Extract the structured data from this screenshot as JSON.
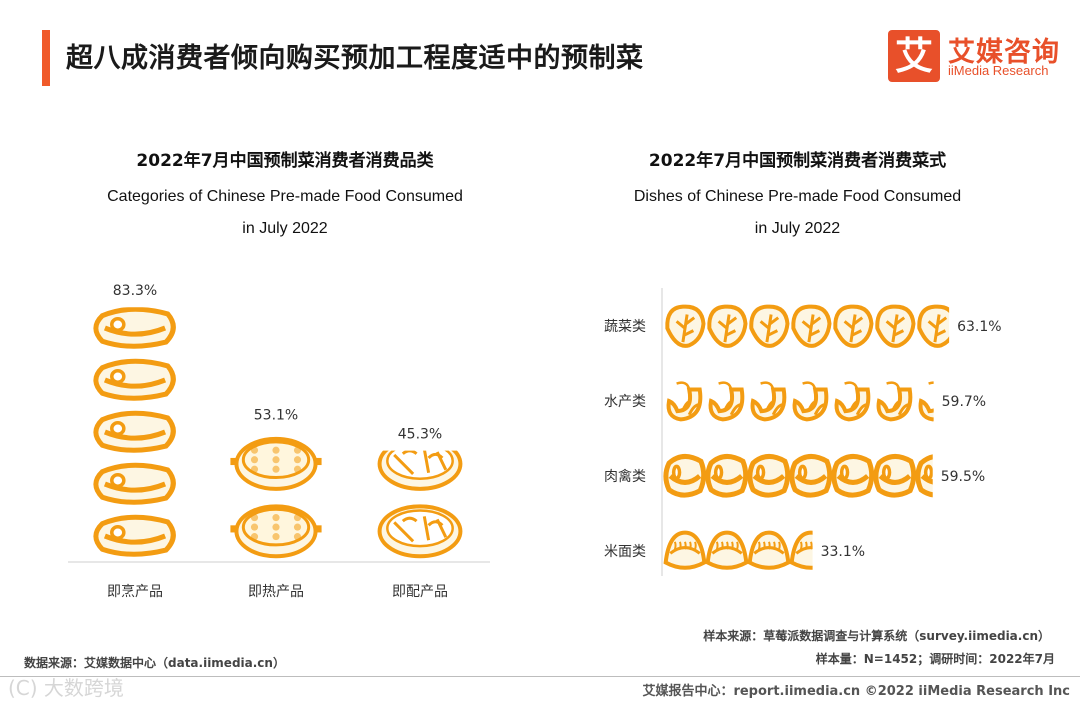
{
  "page": {
    "title": "超八成消费者倾向购买预加工程度适中的预制菜"
  },
  "logo": {
    "glyph": "艾",
    "cn": "艾媒咨询",
    "en": "iiMedia Research"
  },
  "charts_text": {
    "left_title_cn": "2022年7月中国预制菜消费者消费品类",
    "left_title_en_1": "Categories of Chinese Pre-made Food Consumed",
    "left_title_en_2": "in July 2022",
    "right_title_cn": "2022年7月中国预制菜消费者消费菜式",
    "right_title_en_1": "Dishes of Chinese Pre-made Food Consumed",
    "right_title_en_2": "in July 2022"
  },
  "chart_data": [
    {
      "type": "bar",
      "orientation": "vertical",
      "title": "2022年7月中国预制菜消费者消费品类",
      "subtitle": "Categories of Chinese Pre-made Food Consumed in July 2022",
      "categories": [
        "即烹产品",
        "即热产品",
        "即配产品"
      ],
      "values": [
        83.3,
        53.1,
        45.3
      ],
      "value_labels": [
        "83.3%",
        "53.1%",
        "45.3%"
      ],
      "unit": "%",
      "icons": [
        "steak-icon",
        "pot-icon",
        "hotpot-icon"
      ],
      "ylim": [
        0,
        100
      ]
    },
    {
      "type": "bar",
      "orientation": "horizontal",
      "title": "2022年7月中国预制菜消费者消费菜式",
      "subtitle": "Dishes of Chinese Pre-made Food Consumed in July 2022",
      "categories": [
        "蔬菜类",
        "水产类",
        "肉禽类",
        "米面类"
      ],
      "values": [
        63.1,
        59.7,
        59.5,
        33.1
      ],
      "value_labels": [
        "63.1%",
        "59.7%",
        "59.5%",
        "33.1%"
      ],
      "unit": "%",
      "icons": [
        "cabbage-icon",
        "shrimp-icon",
        "steak-icon",
        "dumpling-icon"
      ],
      "xlim": [
        0,
        100
      ]
    }
  ],
  "colors": {
    "accent": "#f05a2a",
    "icon_stroke": "#f39c12",
    "icon_fill": "#fdf6e3"
  },
  "sources": {
    "left": "数据来源：艾媒数据中心（data.iimedia.cn）",
    "right_1": "样本来源：草莓派数据调查与计算系统（survey.iimedia.cn）",
    "right_2": "样本量：N=1452；调研时间：2022年7月"
  },
  "footer": {
    "right": "艾媒报告中心：report.iimedia.cn   ©2022  iiMedia Research  Inc",
    "watermark": "(C) 大数跨境"
  }
}
